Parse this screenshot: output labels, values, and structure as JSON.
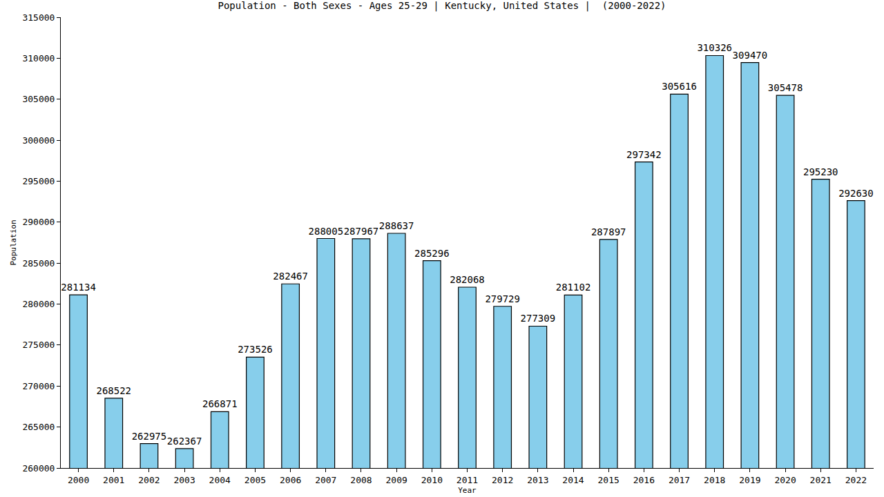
{
  "chart_data": {
    "type": "bar",
    "title": "Population - Both Sexes - Ages 25-29 | Kentucky, United States |  (2000-2022)",
    "x_label": "Year",
    "y_label": "Population",
    "categories": [
      "2000",
      "2001",
      "2002",
      "2003",
      "2004",
      "2005",
      "2006",
      "2007",
      "2008",
      "2009",
      "2010",
      "2011",
      "2012",
      "2013",
      "2014",
      "2015",
      "2016",
      "2017",
      "2018",
      "2019",
      "2020",
      "2021",
      "2022"
    ],
    "values": [
      281134,
      268522,
      262975,
      262367,
      266871,
      273526,
      282467,
      288005,
      287967,
      288637,
      285296,
      282068,
      279729,
      277309,
      281102,
      287897,
      297342,
      305616,
      310326,
      309470,
      305478,
      295230,
      292630
    ],
    "color": "#87ceeb",
    "ylim": [
      260000,
      315000
    ],
    "yticks": [
      260000,
      265000,
      270000,
      275000,
      280000,
      285000,
      290000,
      295000,
      300000,
      305000,
      310000,
      315000
    ],
    "grid": false,
    "data_labels": true
  }
}
